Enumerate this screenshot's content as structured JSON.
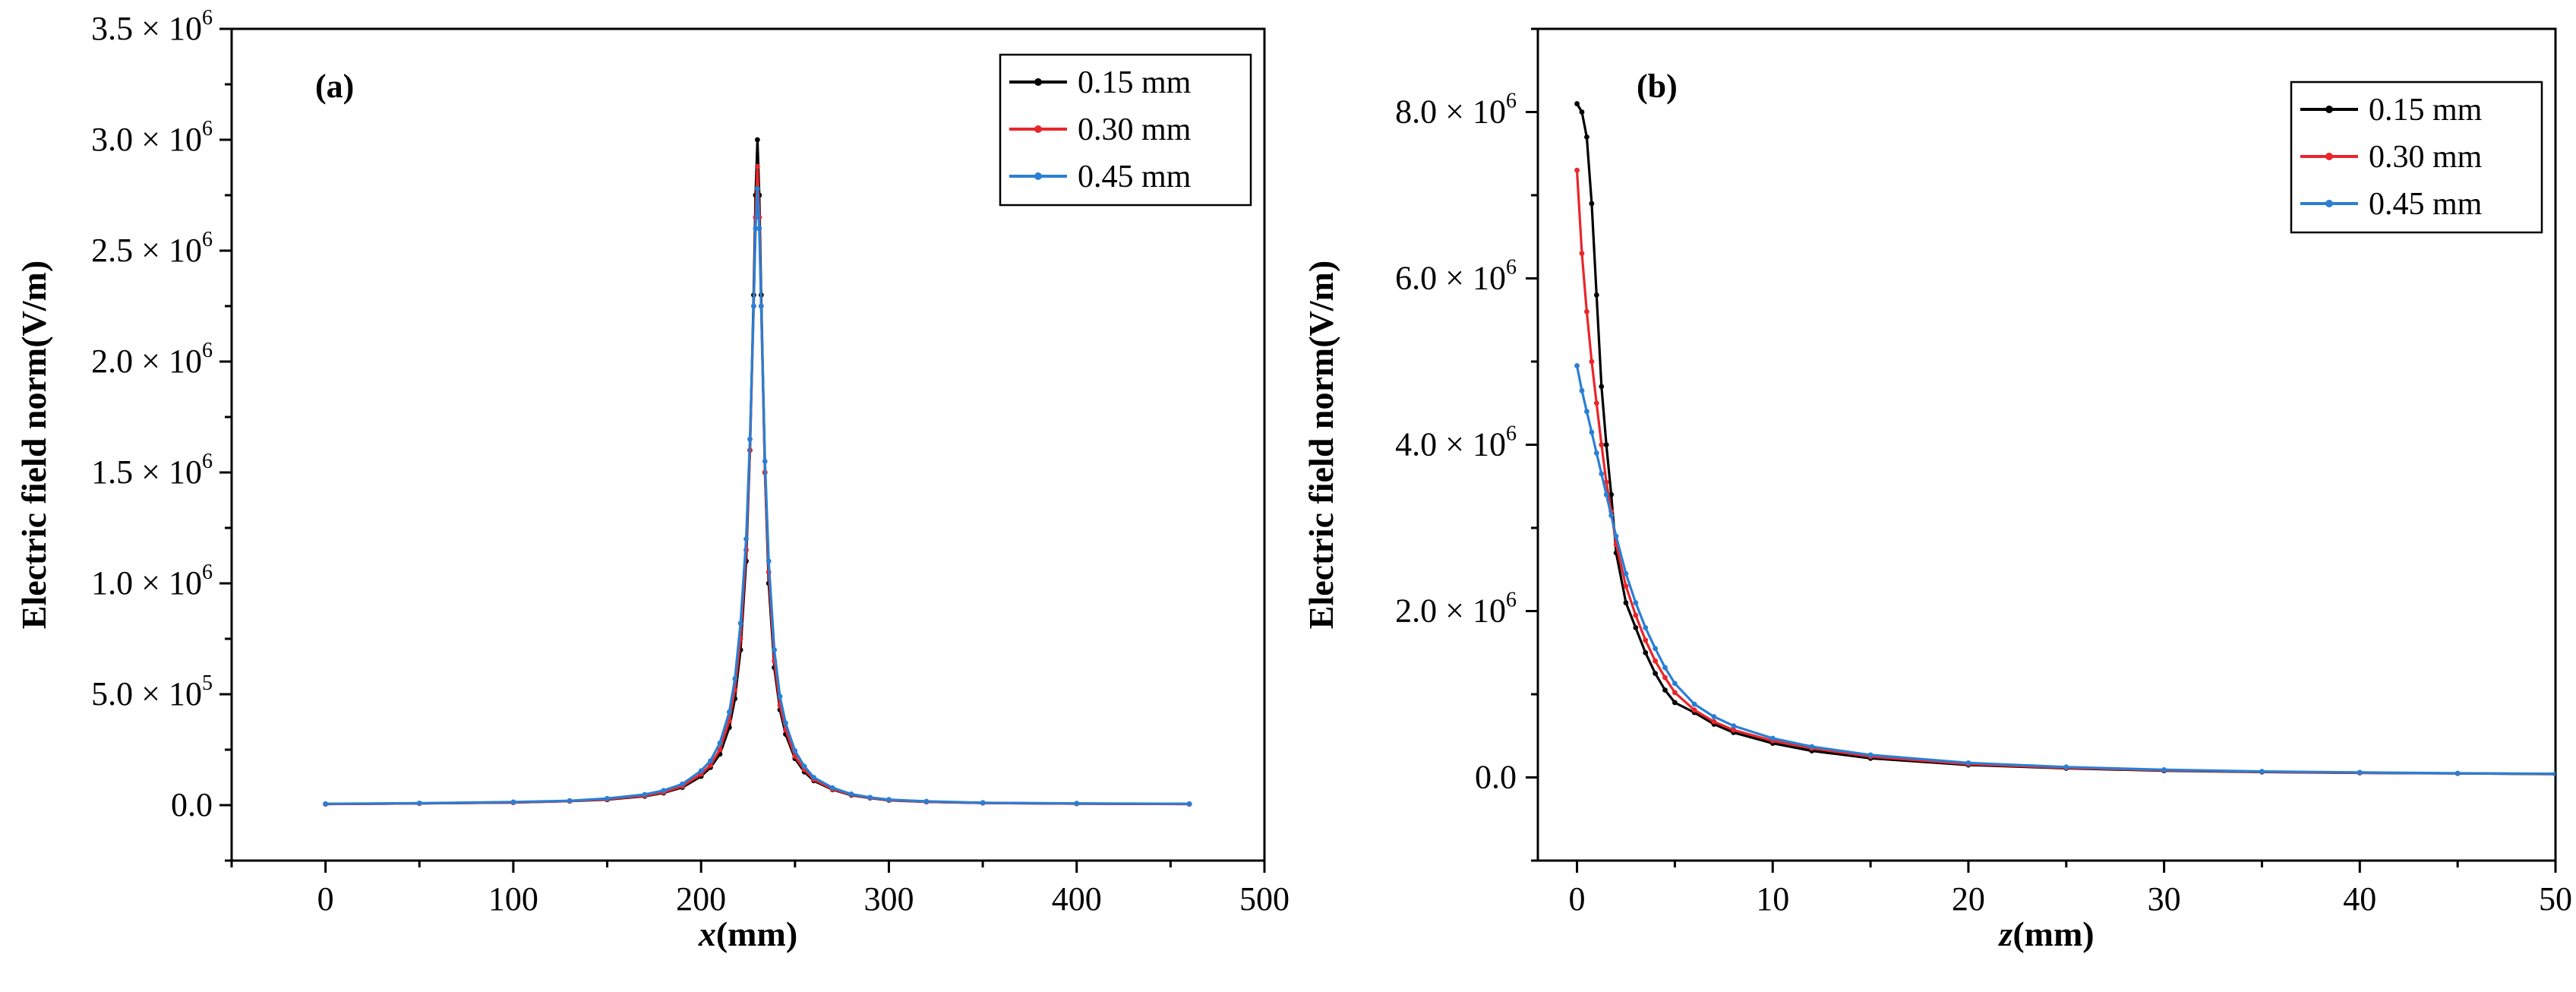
{
  "chart_data": [
    {
      "type": "line",
      "panel_label": "(a)",
      "xlabel": "x(mm)",
      "ylabel": "Electric field norm(V/m)",
      "xlim": [
        -50,
        500
      ],
      "ylim": [
        -250000,
        3500000
      ],
      "xticks": [
        0,
        100,
        200,
        300,
        400,
        500
      ],
      "xtick_labels": [
        "0",
        "100",
        "200",
        "300",
        "400",
        "500"
      ],
      "yticks": [
        0,
        500000,
        1000000,
        1500000,
        2000000,
        2500000,
        3000000,
        3500000
      ],
      "ytick_labels": [
        {
          "mant": "0.0",
          "exp": ""
        },
        {
          "mant": "5.0 × 10",
          "exp": "5"
        },
        {
          "mant": "1.0 × 10",
          "exp": "6"
        },
        {
          "mant": "1.5 × 10",
          "exp": "6"
        },
        {
          "mant": "2.0 × 10",
          "exp": "6"
        },
        {
          "mant": "2.5 × 10",
          "exp": "6"
        },
        {
          "mant": "3.0 × 10",
          "exp": "6"
        },
        {
          "mant": "3.5 × 10",
          "exp": "6"
        }
      ],
      "legend_position": "top-right",
      "series": [
        {
          "name": "0.15 mm",
          "color": "#000000",
          "x": [
            0,
            50,
            100,
            130,
            150,
            170,
            180,
            190,
            200,
            205,
            210,
            215,
            218,
            221,
            224,
            226,
            228,
            229,
            230,
            231,
            232,
            234,
            236,
            239,
            242,
            245,
            250,
            255,
            260,
            270,
            280,
            290,
            300,
            320,
            350,
            400,
            460
          ],
          "y": [
            5000,
            8000,
            12000,
            18000,
            25000,
            40000,
            55000,
            80000,
            130000,
            170000,
            230000,
            350000,
            480000,
            700000,
            1100000,
            1600000,
            2300000,
            2750000,
            3000000,
            2750000,
            2300000,
            1500000,
            1000000,
            620000,
            430000,
            320000,
            210000,
            150000,
            110000,
            70000,
            45000,
            32000,
            22000,
            15000,
            10000,
            7000,
            5000
          ]
        },
        {
          "name": "0.30 mm",
          "color": "#e8262a",
          "x": [
            0,
            50,
            100,
            130,
            150,
            170,
            180,
            190,
            200,
            205,
            210,
            215,
            218,
            221,
            224,
            226,
            228,
            229,
            230,
            231,
            232,
            234,
            236,
            239,
            242,
            245,
            250,
            255,
            260,
            270,
            280,
            290,
            300,
            320,
            350,
            400,
            460
          ],
          "y": [
            5000,
            8000,
            12000,
            18000,
            27000,
            42000,
            58000,
            85000,
            140000,
            180000,
            250000,
            380000,
            520000,
            750000,
            1150000,
            1600000,
            2250000,
            2650000,
            2880000,
            2650000,
            2250000,
            1500000,
            1050000,
            650000,
            450000,
            340000,
            220000,
            160000,
            115000,
            72000,
            47000,
            33000,
            23000,
            15000,
            10000,
            7000,
            5000
          ]
        },
        {
          "name": "0.45 mm",
          "color": "#2a7fd4",
          "x": [
            0,
            50,
            100,
            130,
            150,
            170,
            180,
            190,
            200,
            205,
            210,
            215,
            218,
            221,
            224,
            226,
            228,
            229,
            230,
            231,
            232,
            234,
            236,
            239,
            242,
            245,
            250,
            255,
            260,
            270,
            280,
            290,
            300,
            320,
            350,
            400,
            460
          ],
          "y": [
            6000,
            9000,
            14000,
            20000,
            30000,
            48000,
            66000,
            95000,
            155000,
            200000,
            280000,
            420000,
            570000,
            820000,
            1200000,
            1650000,
            2250000,
            2600000,
            2780000,
            2600000,
            2250000,
            1550000,
            1100000,
            700000,
            490000,
            370000,
            245000,
            175000,
            125000,
            78000,
            50000,
            35000,
            25000,
            17000,
            11000,
            8000,
            6000
          ]
        }
      ]
    },
    {
      "type": "line",
      "panel_label": "(b)",
      "xlabel": "z(mm)",
      "ylabel": "Electric field norm(V/m)",
      "xlim": [
        -2,
        50
      ],
      "ylim": [
        -1000000,
        9000000
      ],
      "xticks": [
        0,
        10,
        20,
        30,
        40,
        50
      ],
      "xtick_labels": [
        "0",
        "10",
        "20",
        "30",
        "40",
        "50"
      ],
      "yticks": [
        0,
        2000000,
        4000000,
        6000000,
        8000000
      ],
      "ytick_labels": [
        {
          "mant": "0.0",
          "exp": ""
        },
        {
          "mant": "2.0 × 10",
          "exp": "6"
        },
        {
          "mant": "4.0 × 10",
          "exp": "6"
        },
        {
          "mant": "6.0 × 10",
          "exp": "6"
        },
        {
          "mant": "8.0 × 10",
          "exp": "6"
        }
      ],
      "legend_position": "top-right",
      "series": [
        {
          "name": "0.15 mm",
          "color": "#000000",
          "x": [
            0,
            0.25,
            0.5,
            0.75,
            1.0,
            1.25,
            1.5,
            1.75,
            2.0,
            2.5,
            3.0,
            3.5,
            4.0,
            4.5,
            5.0,
            6.0,
            7.0,
            8.0,
            10.0,
            12.0,
            15.0,
            20.0,
            25.0,
            30.0,
            35.0,
            40.0,
            45.0,
            50.0
          ],
          "y": [
            8100000,
            8000000,
            7700000,
            6900000,
            5800000,
            4700000,
            4000000,
            3400000,
            2700000,
            2100000,
            1800000,
            1500000,
            1250000,
            1050000,
            900000,
            780000,
            640000,
            540000,
            410000,
            320000,
            230000,
            150000,
            110000,
            80000,
            65000,
            55000,
            48000,
            40000
          ]
        },
        {
          "name": "0.30 mm",
          "color": "#e8262a",
          "x": [
            0,
            0.25,
            0.5,
            0.75,
            1.0,
            1.25,
            1.5,
            1.75,
            2.0,
            2.5,
            3.0,
            3.5,
            4.0,
            4.5,
            5.0,
            6.0,
            7.0,
            8.0,
            10.0,
            12.0,
            15.0,
            20.0,
            25.0,
            30.0,
            35.0,
            40.0,
            45.0,
            50.0
          ],
          "y": [
            7300000,
            6300000,
            5600000,
            5000000,
            4500000,
            4000000,
            3550000,
            3200000,
            2800000,
            2300000,
            1950000,
            1650000,
            1400000,
            1200000,
            1020000,
            810000,
            670000,
            570000,
            440000,
            350000,
            250000,
            160000,
            115000,
            85000,
            68000,
            56000,
            48000,
            42000
          ]
        },
        {
          "name": "0.45 mm",
          "color": "#2a7fd4",
          "x": [
            0,
            0.25,
            0.5,
            0.75,
            1.0,
            1.25,
            1.5,
            1.75,
            2.0,
            2.5,
            3.0,
            3.5,
            4.0,
            4.5,
            5.0,
            6.0,
            7.0,
            8.0,
            10.0,
            12.0,
            15.0,
            20.0,
            25.0,
            30.0,
            35.0,
            40.0,
            45.0,
            50.0
          ],
          "y": [
            4950000,
            4650000,
            4400000,
            4150000,
            3900000,
            3650000,
            3400000,
            3150000,
            2900000,
            2450000,
            2100000,
            1800000,
            1550000,
            1320000,
            1130000,
            880000,
            730000,
            620000,
            470000,
            370000,
            270000,
            175000,
            125000,
            92000,
            72000,
            60000,
            50000,
            44000
          ]
        }
      ]
    }
  ]
}
